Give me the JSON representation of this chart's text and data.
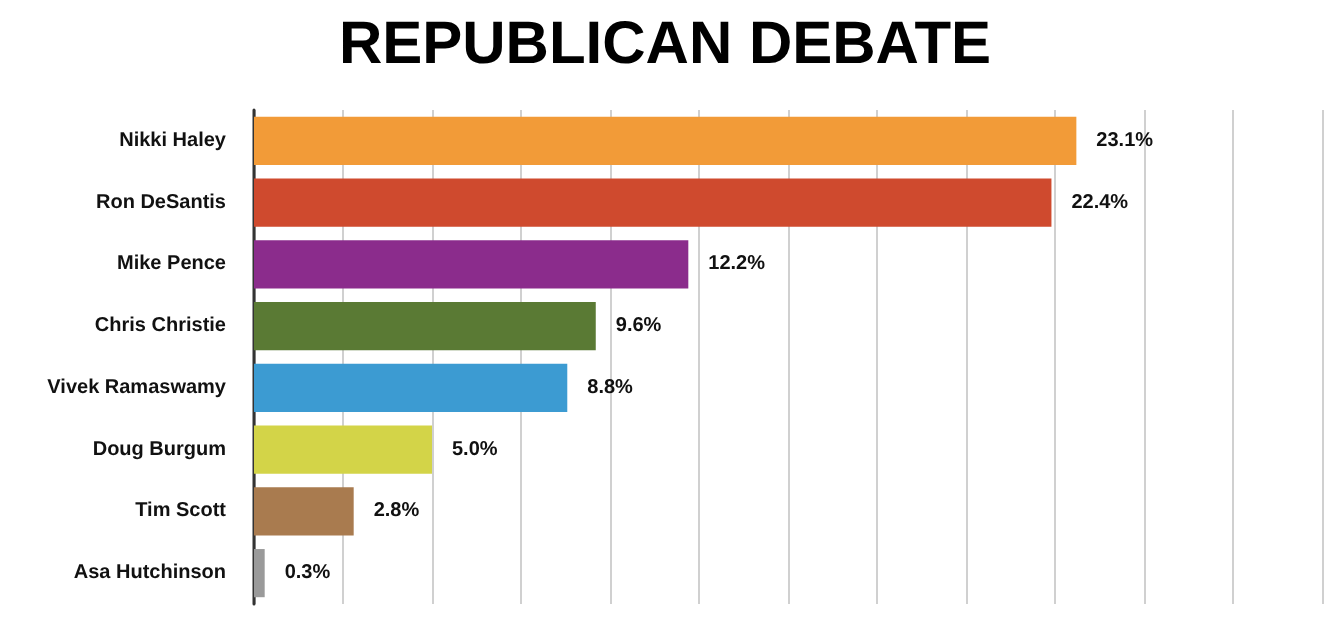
{
  "chart_data": {
    "type": "bar",
    "orientation": "horizontal",
    "title": "REPUBLICAN DEBATE",
    "categories": [
      "Nikki Haley",
      "Ron DeSantis",
      "Mike Pence",
      "Chris Christie",
      "Vivek Ramaswamy",
      "Doug Burgum",
      "Tim Scott",
      "Asa Hutchinson"
    ],
    "values": [
      23.1,
      22.4,
      12.2,
      9.6,
      8.8,
      5.0,
      2.8,
      0.3
    ],
    "value_labels": [
      "23.1%",
      "22.4%",
      "12.2%",
      "9.6%",
      "8.8%",
      "5.0%",
      "2.8%",
      "0.3%"
    ],
    "colors": [
      "#f29b38",
      "#cf4a2e",
      "#8b2c8c",
      "#5a7a34",
      "#3c9bd2",
      "#d3d448",
      "#a97b4f",
      "#9a9a9a"
    ],
    "xlim": [
      0,
      30
    ],
    "xticks": [
      {
        "value": 0,
        "label": null
      },
      {
        "value": 2.5,
        "label": null
      },
      {
        "value": 5,
        "label": null
      },
      {
        "value": 7.5,
        "label": null
      },
      {
        "value": 10,
        "label": null
      },
      {
        "value": 12.5,
        "label": null
      },
      {
        "value": 15,
        "label": null
      },
      {
        "value": 17.5,
        "label": null
      },
      {
        "value": 20,
        "label": null
      },
      {
        "value": 22.5,
        "label": null
      },
      {
        "value": 25,
        "label": null
      },
      {
        "value": 27.5,
        "label": null
      },
      {
        "value": 30,
        "label": null
      }
    ],
    "grid": "x"
  }
}
